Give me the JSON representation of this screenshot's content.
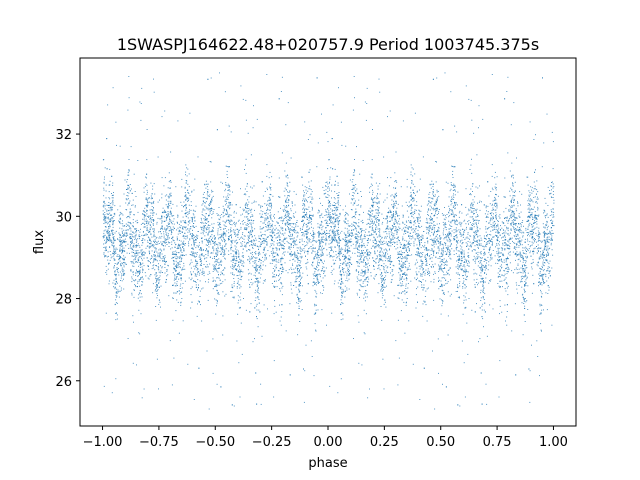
{
  "chart_data": {
    "type": "scatter",
    "title": "1SWASPJ164622.48+020757.9 Period 1003745.375s",
    "xlabel": "phase",
    "ylabel": "flux",
    "xlim": [
      -1.1,
      1.1
    ],
    "ylim": [
      24.9,
      33.85
    ],
    "x_ticks": [
      -1.0,
      -0.75,
      -0.5,
      -0.25,
      0.0,
      0.25,
      0.5,
      0.75,
      1.0
    ],
    "x_tick_labels": [
      "−1.00",
      "−0.75",
      "−0.50",
      "−0.25",
      "0.00",
      "0.25",
      "0.50",
      "0.75",
      "1.00"
    ],
    "y_ticks": [
      26,
      28,
      30,
      32
    ],
    "y_tick_labels": [
      "26",
      "28",
      "30",
      "32"
    ],
    "grid": false,
    "marker_color": "#1f77b4",
    "series": [
      {
        "description_points": "dense light-curve scatter, phase-folded and mirrored (phase -1..0 repeats 0..1)",
        "phase_range": [
          -1.0,
          1.0
        ],
        "median_flux": 29.4,
        "typical_spread": [
          28.0,
          30.8
        ],
        "outlier_range": [
          25.3,
          33.6
        ],
        "point_count": 9000
      }
    ]
  }
}
